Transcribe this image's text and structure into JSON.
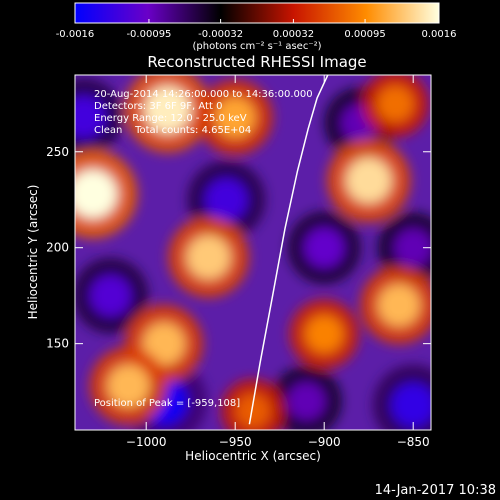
{
  "colorbar": {
    "tick_labels": [
      "-0.0016",
      "-0.00095",
      "-0.00032",
      "0.00032",
      "0.00095",
      "0.0016"
    ],
    "ticks": [
      -0.0016,
      -0.00095,
      -0.00032,
      0.00032,
      0.00095,
      0.0016
    ],
    "range": [
      -0.0016,
      0.0016
    ],
    "units_label": "(photons cm⁻² s⁻¹ asec⁻²)",
    "colors": [
      "#0000ff",
      "#6a00c8",
      "#000000",
      "#c81400",
      "#ff8c00",
      "#ffffe0"
    ]
  },
  "chart_data": {
    "type": "heatmap",
    "title": "Reconstructed RHESSI Image",
    "xlabel": "Heliocentric X (arcsec)",
    "ylabel": "Heliocentric Y (arcsec)",
    "xlim": [
      -1040,
      -840
    ],
    "ylim": [
      105,
      290
    ],
    "x_ticks": [
      -1000,
      -950,
      -900,
      -850
    ],
    "y_ticks": [
      150,
      200,
      250
    ],
    "annotations": [
      "20-Aug-2014 14:26:00.000 to 14:36:00.000",
      "Detectors: 3F 6F 9F, Att 0",
      "Energy Range: 12.0 - 25.0 keV",
      "Clean    Total counts: 4.65E+04"
    ],
    "peak_label": "Position of Peak = [-959,108]",
    "peak_position": [
      -959,
      108
    ],
    "limb_curve": {
      "x": [
        -942,
        -936,
        -929,
        -922,
        -915,
        -909,
        -904,
        -898
      ],
      "y": [
        108,
        140,
        175,
        210,
        240,
        262,
        278,
        290
      ]
    },
    "bright_blobs": [
      {
        "x": -1030,
        "y": 228,
        "value": 0.0016
      },
      {
        "x": -988,
        "y": 272,
        "value": 0.0015
      },
      {
        "x": -950,
        "y": 268,
        "value": 0.0011
      },
      {
        "x": -965,
        "y": 195,
        "value": 0.0013
      },
      {
        "x": -990,
        "y": 150,
        "value": 0.0012
      },
      {
        "x": -1010,
        "y": 128,
        "value": 0.0012
      },
      {
        "x": -875,
        "y": 235,
        "value": 0.0014
      },
      {
        "x": -858,
        "y": 170,
        "value": 0.0012
      },
      {
        "x": -900,
        "y": 155,
        "value": 0.0009
      },
      {
        "x": -860,
        "y": 275,
        "value": 0.0008
      },
      {
        "x": -940,
        "y": 115,
        "value": 0.0007
      }
    ],
    "dark_blobs": [
      {
        "x": -1035,
        "y": 268,
        "value": -0.0012
      },
      {
        "x": -955,
        "y": 225,
        "value": -0.0012
      },
      {
        "x": -1020,
        "y": 175,
        "value": -0.0011
      },
      {
        "x": -900,
        "y": 200,
        "value": -0.001
      },
      {
        "x": -880,
        "y": 265,
        "value": -0.0009
      },
      {
        "x": -990,
        "y": 120,
        "value": -0.0015
      },
      {
        "x": -850,
        "y": 118,
        "value": -0.0013
      },
      {
        "x": -910,
        "y": 120,
        "value": -0.0009
      },
      {
        "x": -850,
        "y": 200,
        "value": -0.0009
      }
    ]
  },
  "footer": {
    "timestamp": "14-Jan-2017 10:38"
  }
}
